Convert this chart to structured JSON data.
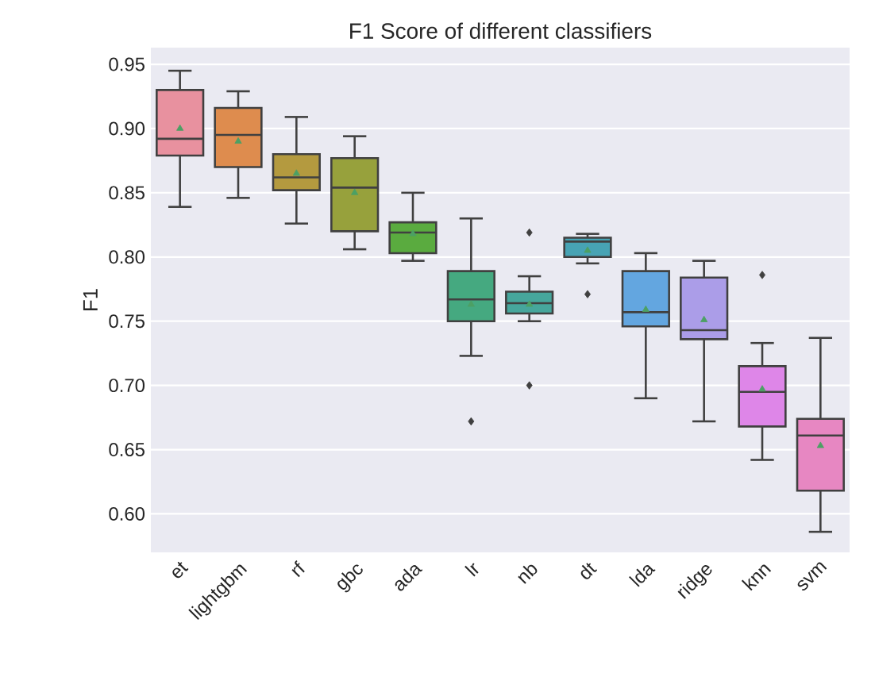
{
  "chart_data": {
    "type": "box",
    "title": "F1 Score of different classifiers",
    "ylabel": "F1",
    "categories": [
      "et",
      "lightgbm",
      "rf",
      "gbc",
      "ada",
      "lr",
      "nb",
      "dt",
      "lda",
      "ridge",
      "knn",
      "svm"
    ],
    "colors": [
      "#e8919f",
      "#de8c4e",
      "#b49a3f",
      "#97a13c",
      "#5aab3f",
      "#45a980",
      "#46a69c",
      "#47a3b4",
      "#63a6e0",
      "#ab9de8",
      "#de86e8",
      "#e787c2"
    ],
    "boxes": [
      {
        "low": 0.839,
        "q1": 0.879,
        "median": 0.892,
        "q3": 0.93,
        "high": 0.945,
        "mean": 0.9
      },
      {
        "low": 0.846,
        "q1": 0.87,
        "median": 0.895,
        "q3": 0.916,
        "high": 0.929,
        "mean": 0.89
      },
      {
        "low": 0.826,
        "q1": 0.852,
        "median": 0.862,
        "q3": 0.88,
        "high": 0.909,
        "mean": 0.865
      },
      {
        "low": 0.806,
        "q1": 0.82,
        "median": 0.854,
        "q3": 0.877,
        "high": 0.894,
        "mean": 0.85
      },
      {
        "low": 0.797,
        "q1": 0.803,
        "median": 0.819,
        "q3": 0.827,
        "high": 0.85,
        "mean": 0.818
      },
      {
        "low": 0.723,
        "q1": 0.75,
        "median": 0.767,
        "q3": 0.789,
        "high": 0.83,
        "mean": 0.763,
        "outliers": [
          0.672
        ]
      },
      {
        "low": 0.75,
        "q1": 0.756,
        "median": 0.764,
        "q3": 0.773,
        "high": 0.785,
        "mean": 0.763,
        "outliers": [
          0.819,
          0.7
        ]
      },
      {
        "low": 0.795,
        "q1": 0.8,
        "median": 0.812,
        "q3": 0.815,
        "high": 0.818,
        "mean": 0.805,
        "outliers": [
          0.771
        ]
      },
      {
        "low": 0.69,
        "q1": 0.746,
        "median": 0.757,
        "q3": 0.789,
        "high": 0.803,
        "mean": 0.759
      },
      {
        "low": 0.672,
        "q1": 0.736,
        "median": 0.743,
        "q3": 0.784,
        "high": 0.797,
        "mean": 0.751
      },
      {
        "low": 0.642,
        "q1": 0.668,
        "median": 0.695,
        "q3": 0.715,
        "high": 0.733,
        "mean": 0.697,
        "outliers": [
          0.786
        ]
      },
      {
        "low": 0.586,
        "q1": 0.618,
        "median": 0.661,
        "q3": 0.674,
        "high": 0.737,
        "mean": 0.653
      }
    ],
    "ylim": [
      0.57,
      0.963
    ],
    "yticks": [
      {
        "value": 0.6,
        "label": "0.60"
      },
      0.65,
      {
        "value": 0.7,
        "label": "0.70"
      },
      0.75,
      {
        "value": 0.8,
        "label": "0.80"
      },
      0.85,
      {
        "value": 0.9,
        "label": "0.90"
      },
      0.95
    ],
    "grid": "y"
  }
}
